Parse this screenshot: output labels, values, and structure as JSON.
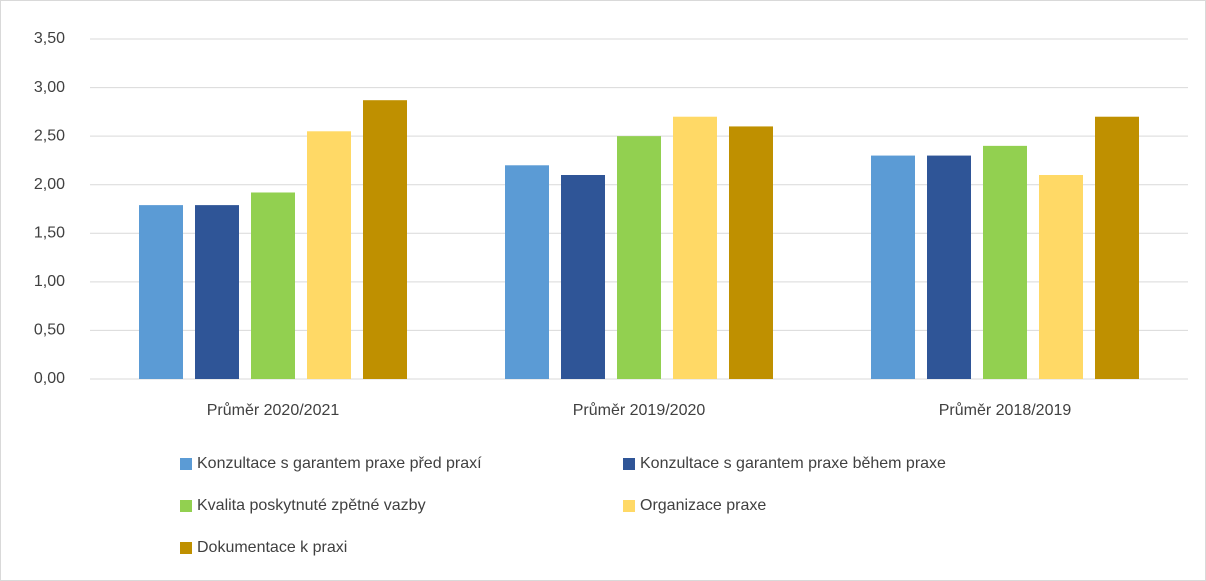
{
  "chart_data": {
    "type": "bar",
    "categories": [
      "Průměr 2020/2021",
      "Průměr 2019/2020",
      "Průměr 2018/2019"
    ],
    "series": [
      {
        "name": "Konzultace s garantem praxe před praxí",
        "color": "#5b9bd5",
        "values": [
          1.79,
          2.2,
          2.3
        ]
      },
      {
        "name": "Konzultace s garantem praxe během praxe",
        "color": "#2f5597",
        "values": [
          1.79,
          2.1,
          2.3
        ]
      },
      {
        "name": "Kvalita poskytnuté zpětné vazby",
        "color": "#92d050",
        "values": [
          1.92,
          2.5,
          2.4
        ]
      },
      {
        "name": "Organizace praxe",
        "color": "#ffd966",
        "values": [
          2.55,
          2.7,
          2.1
        ]
      },
      {
        "name": "Dokumentace k praxi",
        "color": "#bf9000",
        "values": [
          2.87,
          2.6,
          2.7
        ]
      }
    ],
    "ylim": [
      0,
      3.5
    ],
    "yticks": [
      {
        "value": 0,
        "label": "0,00"
      },
      {
        "value": 0.5,
        "label": "0,50"
      },
      {
        "value": 1,
        "label": "1,00"
      },
      {
        "value": 1.5,
        "label": "1,50"
      },
      {
        "value": 2,
        "label": "2,00"
      },
      {
        "value": 2.5,
        "label": "2,50"
      },
      {
        "value": 3,
        "label": "3,00"
      },
      {
        "value": 3.5,
        "label": "3,50"
      }
    ],
    "grid": true,
    "legend": "bottom"
  }
}
